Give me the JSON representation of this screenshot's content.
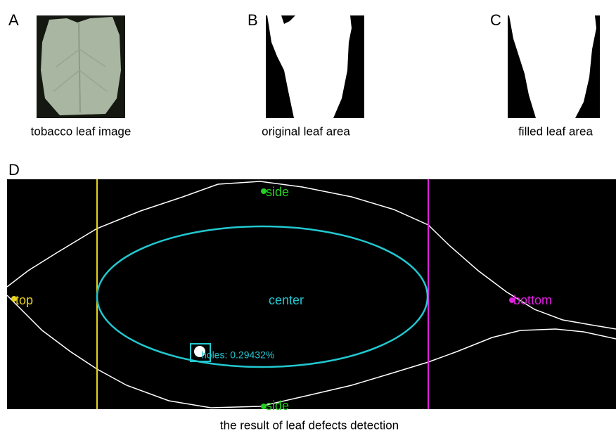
{
  "panels": [
    {
      "label": "A",
      "caption": "tobacco leaf image"
    },
    {
      "label": "B",
      "caption": "original leaf area"
    },
    {
      "label": "C",
      "caption": "filled leaf area"
    }
  ],
  "detection": {
    "label": "D",
    "caption": "the result of leaf defects detection",
    "annotations": {
      "side_top": "side",
      "side_bottom": "side",
      "top": "top",
      "bottom": "bottom",
      "center": "center",
      "holes": "holes: 0.29432%"
    }
  }
}
